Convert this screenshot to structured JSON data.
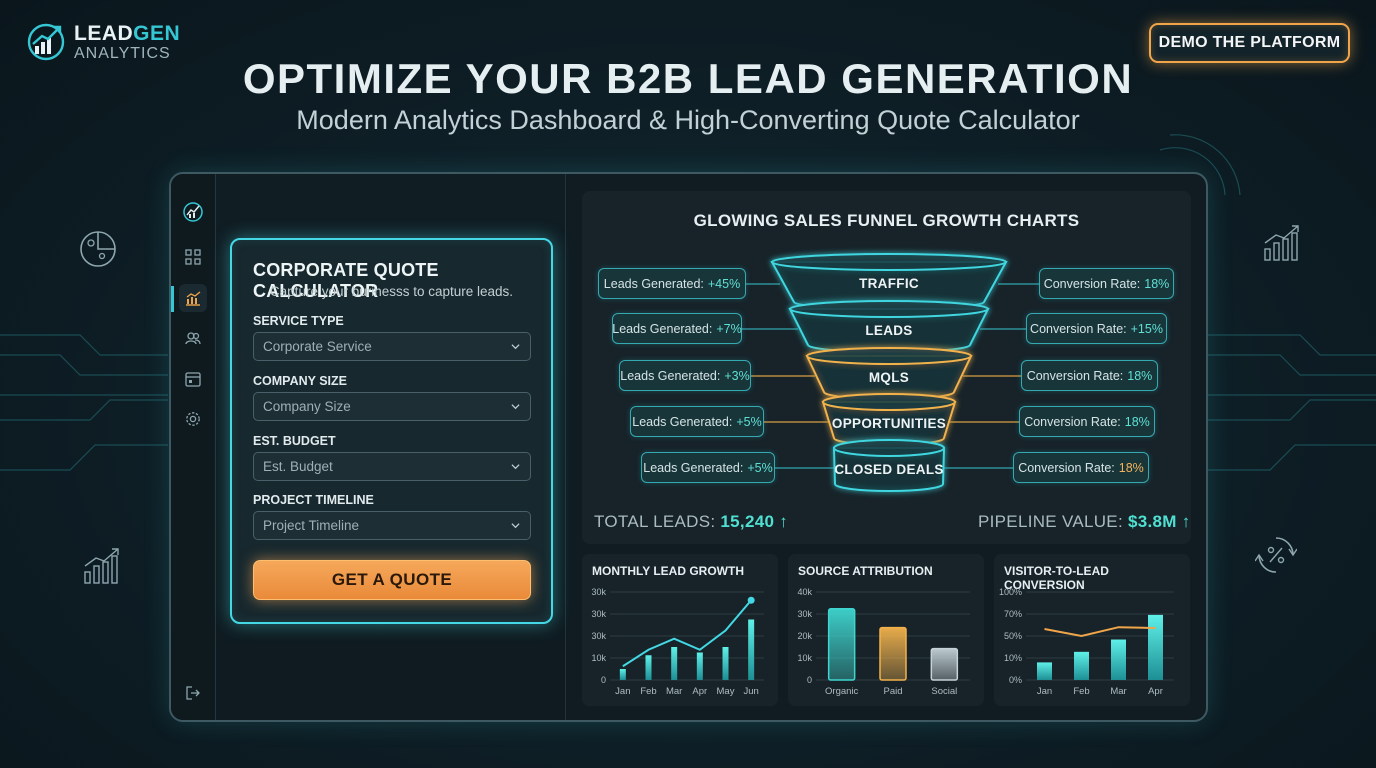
{
  "brand": {
    "name_part1": "LEAD",
    "name_part2": "GEN",
    "name_line2": "ANALYTICS"
  },
  "header": {
    "demo_button": "DEMO THE PLATFORM",
    "title": "OPTIMIZE YOUR B2B LEAD GENERATION",
    "subtitle": "Modern Analytics Dashboard & High-Converting Quote Calculator"
  },
  "sidebar": {
    "icons": [
      "logo-icon",
      "grid-icon",
      "chart-icon",
      "users-icon",
      "calendar-icon",
      "gear-icon",
      "logout-icon"
    ],
    "active_index": 2
  },
  "calculator": {
    "title": "CORPORATE QUOTE CALCULATOR",
    "subtitle": "Capture your burinesss to capture leads.",
    "fields": [
      {
        "label": "SERVICE TYPE",
        "placeholder": "Corporate Service"
      },
      {
        "label": "COMPANY SIZE",
        "placeholder": "Company Size"
      },
      {
        "label": "EST. BUDGET",
        "placeholder": "Est. Budget"
      },
      {
        "label": "PROJECT TIMELINE",
        "placeholder": "Project Timeline"
      }
    ],
    "button": "GET A QUOTE"
  },
  "funnel": {
    "title": "GLOWING SALES FUNNEL GROWTH CHARTS",
    "stages": [
      {
        "name": "TRAFFIC",
        "leads_label": "Leads Generated:",
        "leads_value": "+45%",
        "conv_label": "Conversion Rate:",
        "conv_value": "18%"
      },
      {
        "name": "LEADS",
        "leads_label": "Leads Generated:",
        "leads_value": "+7%",
        "conv_label": "Conversion Rate:",
        "conv_value": "+15%"
      },
      {
        "name": "MQLS",
        "leads_label": "Leads Generated:",
        "leads_value": "+3%",
        "conv_label": "Conversion Rate:",
        "conv_value": "18%"
      },
      {
        "name": "OPPORTUNITIES",
        "leads_label": "Leads Generated:",
        "leads_value": "+5%",
        "conv_label": "Conversion Rate:",
        "conv_value": "18%"
      },
      {
        "name": "CLOSED DEALS",
        "leads_label": "Leads Generated:",
        "leads_value": "+5%",
        "conv_label": "Conversion Rate:",
        "conv_value": "18%"
      }
    ],
    "stage_colors": [
      "#3fd6e0",
      "#3fd6e0",
      "#f2b24c",
      "#f2b24c",
      "#3fd6e0"
    ],
    "total_leads_label": "TOTAL LEADS:",
    "total_leads_value": "15,240 ↑",
    "pipeline_label": "PIPELINE VALUE:",
    "pipeline_value": "$3.8M ↑"
  },
  "chart_data": [
    {
      "type": "bar",
      "title": "MONTHLY LEAD GROWTH",
      "categories": [
        "Jan",
        "Feb",
        "Mar",
        "Apr",
        "May",
        "Jun"
      ],
      "y_ticks": [
        "0",
        "10k",
        "30k",
        "30k",
        "30k"
      ],
      "values": [
        4,
        9,
        12,
        10,
        12,
        22
      ],
      "line_values": [
        5,
        11,
        15,
        11,
        18,
        29
      ],
      "ylim": [
        0,
        32
      ]
    },
    {
      "type": "bar",
      "title": "SOURCE ATTRIBUTION",
      "categories": [
        "Organic",
        "Paid",
        "Social"
      ],
      "y_ticks": [
        "0",
        "10k",
        "20k",
        "30k",
        "40k"
      ],
      "values": [
        34,
        25,
        15
      ],
      "bar_colors": [
        "#3fd6d0",
        "#f2b24c",
        "#c5d2d8"
      ],
      "ylim": [
        0,
        42
      ]
    },
    {
      "type": "bar",
      "title": "VISITOR-TO-LEAD CONVERSION",
      "categories": [
        "Jan",
        "Feb",
        "Mar",
        "Apr"
      ],
      "y_ticks": [
        "0%",
        "10%",
        "50%",
        "70%",
        "100%"
      ],
      "values": [
        20,
        32,
        46,
        74
      ],
      "line_values": [
        58,
        50,
        60,
        59
      ],
      "ylim": [
        0,
        100
      ]
    }
  ],
  "colors": {
    "accent": "#35c7d4",
    "orange": "#f0a54a",
    "bg": "#0f2028"
  }
}
